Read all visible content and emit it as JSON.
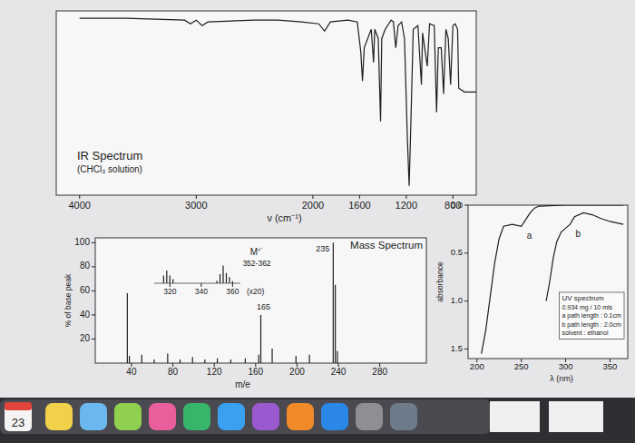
{
  "chart_data": [
    {
      "type": "line",
      "title": "IR Spectrum",
      "subtitle": "(CHCl₃ solution)",
      "x_label": "ν (cm⁻¹)",
      "x": [
        4000,
        3600,
        3100,
        3050,
        3000,
        2950,
        2900,
        2500,
        2300,
        2100,
        1950,
        1900,
        1850,
        1700,
        1620,
        1590,
        1575,
        1560,
        1500,
        1480,
        1470,
        1440,
        1420,
        1410,
        1380,
        1330,
        1310,
        1290,
        1270,
        1240,
        1215,
        1190,
        1175,
        1160,
        1140,
        1100,
        1070,
        1060,
        1020,
        1000,
        960,
        940,
        925,
        900,
        880,
        860,
        840,
        820,
        800,
        780,
        760,
        750,
        700,
        600
      ],
      "values": [
        96,
        96,
        95,
        93,
        95,
        92,
        94,
        95,
        95,
        94,
        93,
        89,
        94,
        95,
        94,
        78,
        62,
        80,
        90,
        72,
        90,
        85,
        40,
        85,
        90,
        95,
        94,
        80,
        92,
        94,
        85,
        30,
        5,
        40,
        90,
        92,
        60,
        88,
        70,
        93,
        92,
        45,
        80,
        80,
        55,
        90,
        85,
        60,
        92,
        93,
        90,
        58,
        56,
        56
      ],
      "xlim": [
        4200,
        600
      ],
      "xticks": [
        4000,
        3000,
        2000,
        1600,
        1200,
        800
      ],
      "ylim": [
        0,
        100
      ],
      "tick_labels": "x",
      "color": "#1e1e1e"
    },
    {
      "type": "bar",
      "title": "Mass Spectrum",
      "x_label": "m/e",
      "y_label": "% of base peak",
      "x": [
        36,
        38,
        50,
        62,
        75,
        87,
        99,
        111,
        123,
        136,
        150,
        163,
        165,
        176,
        199,
        212,
        235,
        237,
        239
      ],
      "values": [
        58,
        6,
        7,
        3,
        8,
        3,
        5,
        3,
        4,
        3,
        4,
        7,
        40,
        12,
        6,
        7,
        100,
        65,
        10
      ],
      "xlim": [
        5,
        325
      ],
      "xticks": [
        40,
        80,
        120,
        160,
        200,
        240,
        280
      ],
      "ylim": [
        0,
        104
      ],
      "yticks": [
        20,
        40,
        60,
        80,
        100
      ],
      "color": "#1e1e1e",
      "annotations": [
        {
          "x": 235,
          "text": "235"
        },
        {
          "x": 165,
          "text": "165"
        }
      ]
    },
    {
      "type": "bar",
      "x": [
        316,
        318,
        320,
        322,
        350,
        352,
        354,
        356,
        358,
        360
      ],
      "values": [
        1.5,
        2.5,
        1.5,
        0.8,
        0.5,
        1.8,
        3.5,
        2.0,
        1.2,
        0.4
      ],
      "xlim": [
        310,
        365
      ],
      "xticks": [
        320,
        340,
        360
      ],
      "ylim": [
        0,
        5
      ],
      "tick_labels": "x",
      "color": "#1e1e1e",
      "annotations": [
        {
          "text": "M⁺˙"
        },
        {
          "text": "352-362"
        },
        {
          "text": "(x20)"
        }
      ]
    },
    {
      "type": "line",
      "title": "UV spectrum",
      "x_label": "λ (nm)",
      "y_label": "absorbance",
      "xlim": [
        190,
        370
      ],
      "xticks": [
        200,
        250,
        300,
        350
      ],
      "ylim": [
        1.6,
        0
      ],
      "yticks": [
        {
          "value": 0,
          "label": "0.0"
        },
        0.5,
        {
          "value": 1,
          "label": "1.0"
        },
        1.5
      ],
      "series": [
        {
          "name": "a",
          "color": "#1e1e1e",
          "x": [
            205,
            210,
            215,
            220,
            225,
            230,
            240,
            250,
            255,
            260,
            265,
            270,
            300,
            350,
            365
          ],
          "values": [
            1.55,
            1.3,
            0.95,
            0.6,
            0.35,
            0.22,
            0.2,
            0.22,
            0.15,
            0.08,
            0.03,
            0.01,
            0,
            0,
            0
          ]
        },
        {
          "name": "b",
          "color": "#1e1e1e",
          "x": [
            278,
            282,
            286,
            290,
            295,
            300,
            305,
            310,
            320,
            330,
            340,
            350,
            365
          ],
          "values": [
            1.0,
            0.8,
            0.55,
            0.38,
            0.28,
            0.24,
            0.2,
            0.12,
            0.08,
            0.1,
            0.14,
            0.17,
            0.2
          ]
        }
      ],
      "annotations": [
        {
          "text": "0.934 mg / 10 mls"
        },
        {
          "text": "a path length : 0.1cm"
        },
        {
          "text": "b path length : 2.0cm"
        },
        {
          "text": "solvent : ethanol"
        }
      ]
    }
  ],
  "dock": {
    "calendar_day": "23"
  }
}
